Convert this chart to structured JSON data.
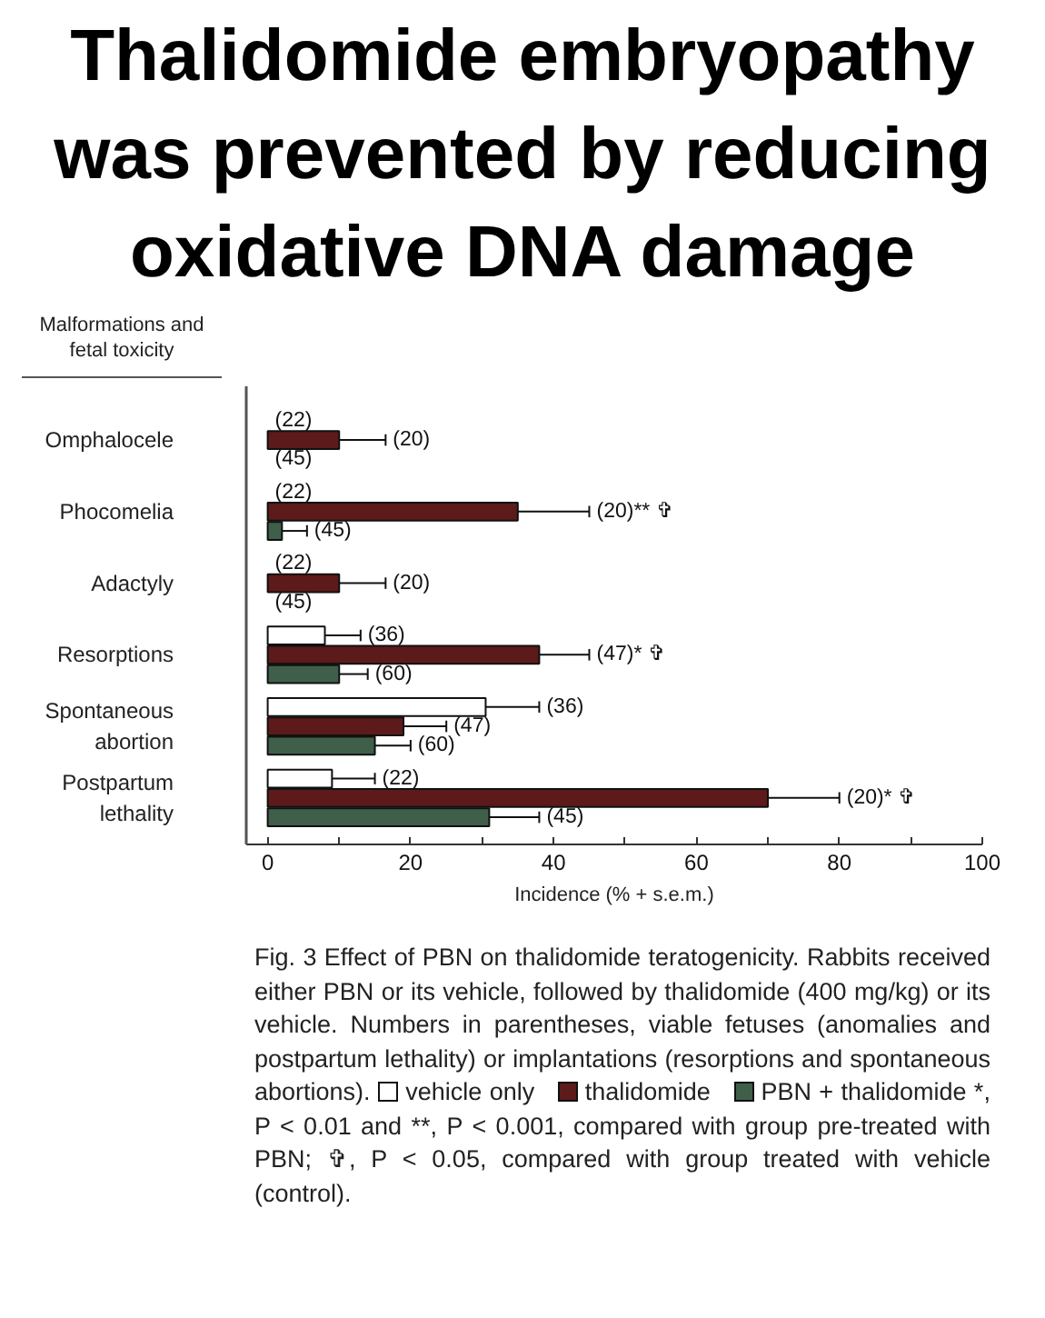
{
  "chart_data": {
    "type": "bar",
    "orientation": "horizontal",
    "title": "Thalidomide embryopathy was prevented by reducing oxidative DNA damage",
    "ylabel": "Malformations and fetal toxicity",
    "xlabel": "Incidence (% + s.e.m.)",
    "categories": [
      "Omphalocele",
      "Phocomelia",
      "Adactyly",
      "Resorptions",
      "Spontaneous abortion",
      "Postpartum lethality"
    ],
    "series": [
      {
        "name": "vehicle only",
        "color": "#ffffff",
        "values": [
          0,
          0,
          0,
          8,
          30.5,
          9
        ],
        "errors": [
          null,
          null,
          null,
          [
            8,
            13
          ],
          [
            30.5,
            38
          ],
          [
            9,
            15
          ]
        ]
      },
      {
        "name": "thalidomide",
        "color": "#5c1a1a",
        "values": [
          10,
          35,
          10,
          38,
          19,
          70
        ],
        "errors": [
          [
            10,
            16.5
          ],
          [
            35,
            45
          ],
          [
            10,
            16.5
          ],
          [
            38,
            45
          ],
          [
            19,
            25
          ],
          [
            70,
            80
          ]
        ]
      },
      {
        "name": "PBN + thalidomide",
        "color": "#3f5f4a",
        "values": [
          0,
          2,
          0,
          10,
          15,
          31
        ],
        "errors": [
          null,
          [
            2,
            5.5
          ],
          null,
          [
            10,
            14
          ],
          [
            15,
            20
          ],
          [
            31,
            38
          ]
        ]
      }
    ],
    "xlim": [
      -3,
      100
    ],
    "xticks": [
      0,
      {
        "value": 10,
        "label": null
      },
      20,
      {
        "value": 30,
        "label": null
      },
      40,
      {
        "value": 50,
        "label": null
      },
      60,
      {
        "value": 70,
        "label": null
      },
      80,
      {
        "value": 90,
        "label": null
      },
      100
    ],
    "legend": "bottom",
    "annotations": [
      {
        "text": "(22)",
        "x": 0,
        "y": "Omphalocele"
      },
      {
        "text": "(20)",
        "x": 16.5,
        "y": "Omphalocele"
      },
      {
        "text": "(45)",
        "x": 0,
        "y": "Omphalocele"
      },
      {
        "text": "(22)",
        "x": 0,
        "y": "Phocomelia"
      },
      {
        "text": "(20)** ✞",
        "x": 45,
        "y": "Phocomelia"
      },
      {
        "text": "(45)",
        "x": 5.5,
        "y": "Phocomelia"
      },
      {
        "text": "(22)",
        "x": 0,
        "y": "Adactyly"
      },
      {
        "text": "(20)",
        "x": 16.5,
        "y": "Adactyly"
      },
      {
        "text": "(45)",
        "x": 0,
        "y": "Adactyly"
      },
      {
        "text": "(36)",
        "x": 13,
        "y": "Resorptions"
      },
      {
        "text": "(47)* ✞",
        "x": 45,
        "y": "Resorptions"
      },
      {
        "text": "(60)",
        "x": 14,
        "y": "Resorptions"
      },
      {
        "text": "(36)",
        "x": 38
      },
      {
        "text": "(47)",
        "x": 25,
        "y": "Spontaneous abortion"
      },
      {
        "text": "(60)",
        "x": 20,
        "y": "Spontaneous abortion"
      },
      {
        "text": "(22)",
        "x": 15,
        "y": "Postpartum lethality"
      },
      {
        "text": "(20)* ✞",
        "x": 80,
        "y": "Postpartum lethality"
      },
      {
        "text": "(45)",
        "x": 38,
        "y": "Postpartum lethality"
      },
      "Fig. 3  Effect of PBN on thalidomide teratogenicity. Rabbits received either PBN or its vehicle, followed by thalidomide (400 mg/kg) or its vehicle. Numbers in parentheses, viable fetuses (anomalies and postpartum lethality) or implantations (resorptions and spontaneous abortions).",
      "*, P < 0.01 and **, P < 0.001, compared with group pre-treated with PBN; ✞, P < 0.05, compared with group treated with vehicle (control)."
    ]
  }
}
